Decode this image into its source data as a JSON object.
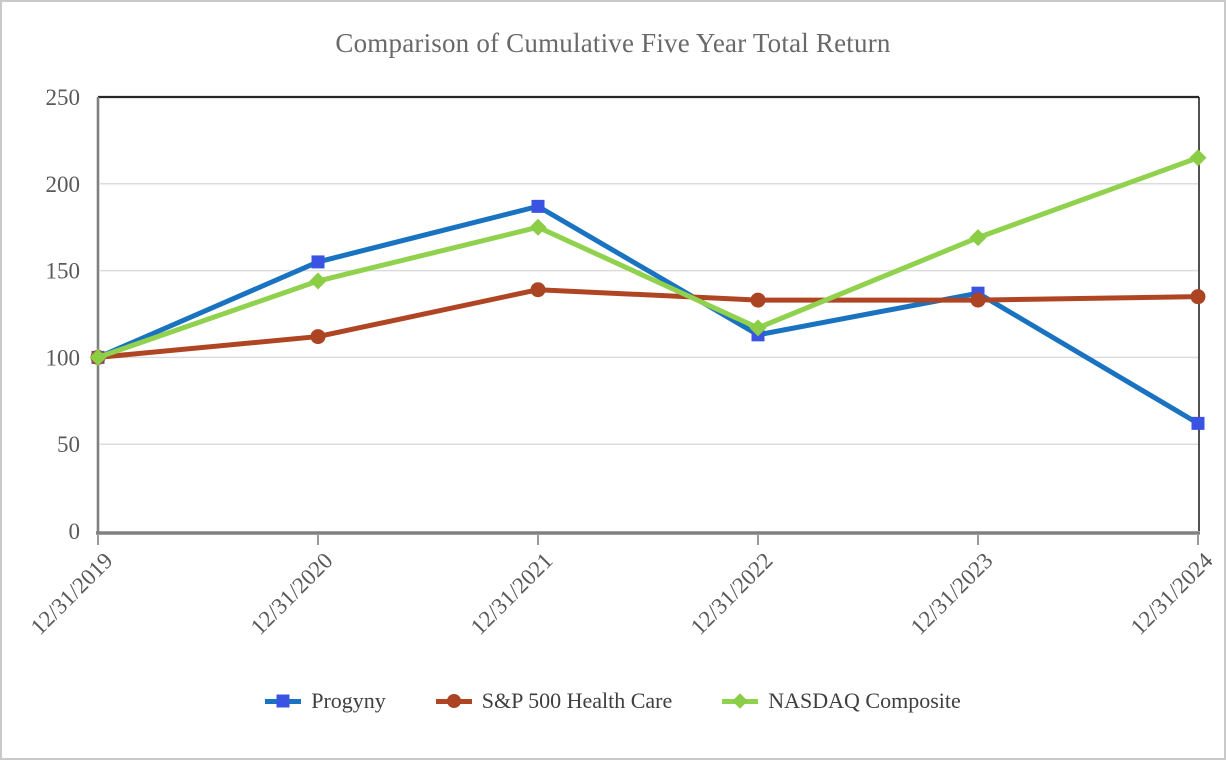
{
  "chart_data": {
    "type": "line",
    "title": "Comparison of Cumulative Five Year Total Return",
    "categories": [
      "12/31/2019",
      "12/31/2020",
      "12/31/2021",
      "12/31/2022",
      "12/31/2023",
      "12/31/2024"
    ],
    "series": [
      {
        "name": "Progyny",
        "values": [
          100,
          155,
          187,
          113,
          137,
          62
        ],
        "color": "#1a73c0",
        "marker": "square",
        "marker_color": "#3b53e2"
      },
      {
        "name": "S&P 500 Health Care",
        "values": [
          100,
          112,
          139,
          133,
          133,
          135
        ],
        "color": "#b04524",
        "marker": "circle",
        "marker_color": "#ab4422"
      },
      {
        "name": "NASDAQ Composite",
        "values": [
          100,
          144,
          175,
          117,
          169,
          215
        ],
        "color": "#90d14e",
        "marker": "diamond",
        "marker_color": "#8bcd47"
      }
    ],
    "xlabel": "",
    "ylabel": "",
    "ylim": [
      0,
      250
    ],
    "yticks": [
      0,
      50,
      100,
      150,
      200,
      250
    ],
    "grid": "horizontal",
    "legend_position": "bottom"
  },
  "colors": {
    "title_text": "#696969",
    "axis_tick_text": "#595959",
    "legend_text": "#3f3f3f",
    "gridline": "#dcdcdc",
    "axis_line_gray": "#808080",
    "plot_border_black": "#262626",
    "background": "#ffffff"
  }
}
